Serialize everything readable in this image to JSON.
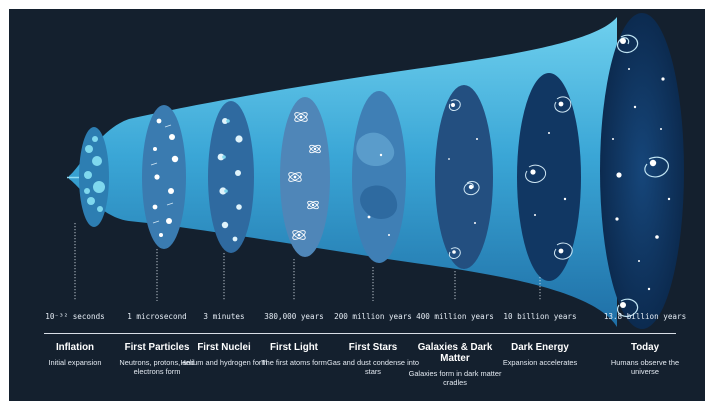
{
  "colors": {
    "background": "#14202e",
    "cone_light": "#5dc6e8",
    "cone_dark": "#1e7fb3",
    "disc_early": "#2e6ea0",
    "disc_late": "#0d2c52",
    "text": "#ffffff"
  },
  "epochs": [
    {
      "time": "10⁻³² seconds",
      "name": "Inflation",
      "desc": "Initial expansion"
    },
    {
      "time": "1 microsecond",
      "name": "First Particles",
      "desc": "Neutrons, protons, and electrons form"
    },
    {
      "time": "3 minutes",
      "name": "First Nuclei",
      "desc": "Helium and hydrogen form"
    },
    {
      "time": "380,000 years",
      "name": "First Light",
      "desc": "The first atoms form"
    },
    {
      "time": "200 million years",
      "name": "First Stars",
      "desc": "Gas and dust condense into stars"
    },
    {
      "time": "400 million years",
      "name": "Galaxies & Dark Matter",
      "desc": "Galaxies form in dark matter cradles"
    },
    {
      "time": "10 billion years",
      "name": "Dark Energy",
      "desc": "Expansion accelerates"
    },
    {
      "time": "13.8 billion years",
      "name": "Today",
      "desc": "Humans observe the universe"
    }
  ]
}
